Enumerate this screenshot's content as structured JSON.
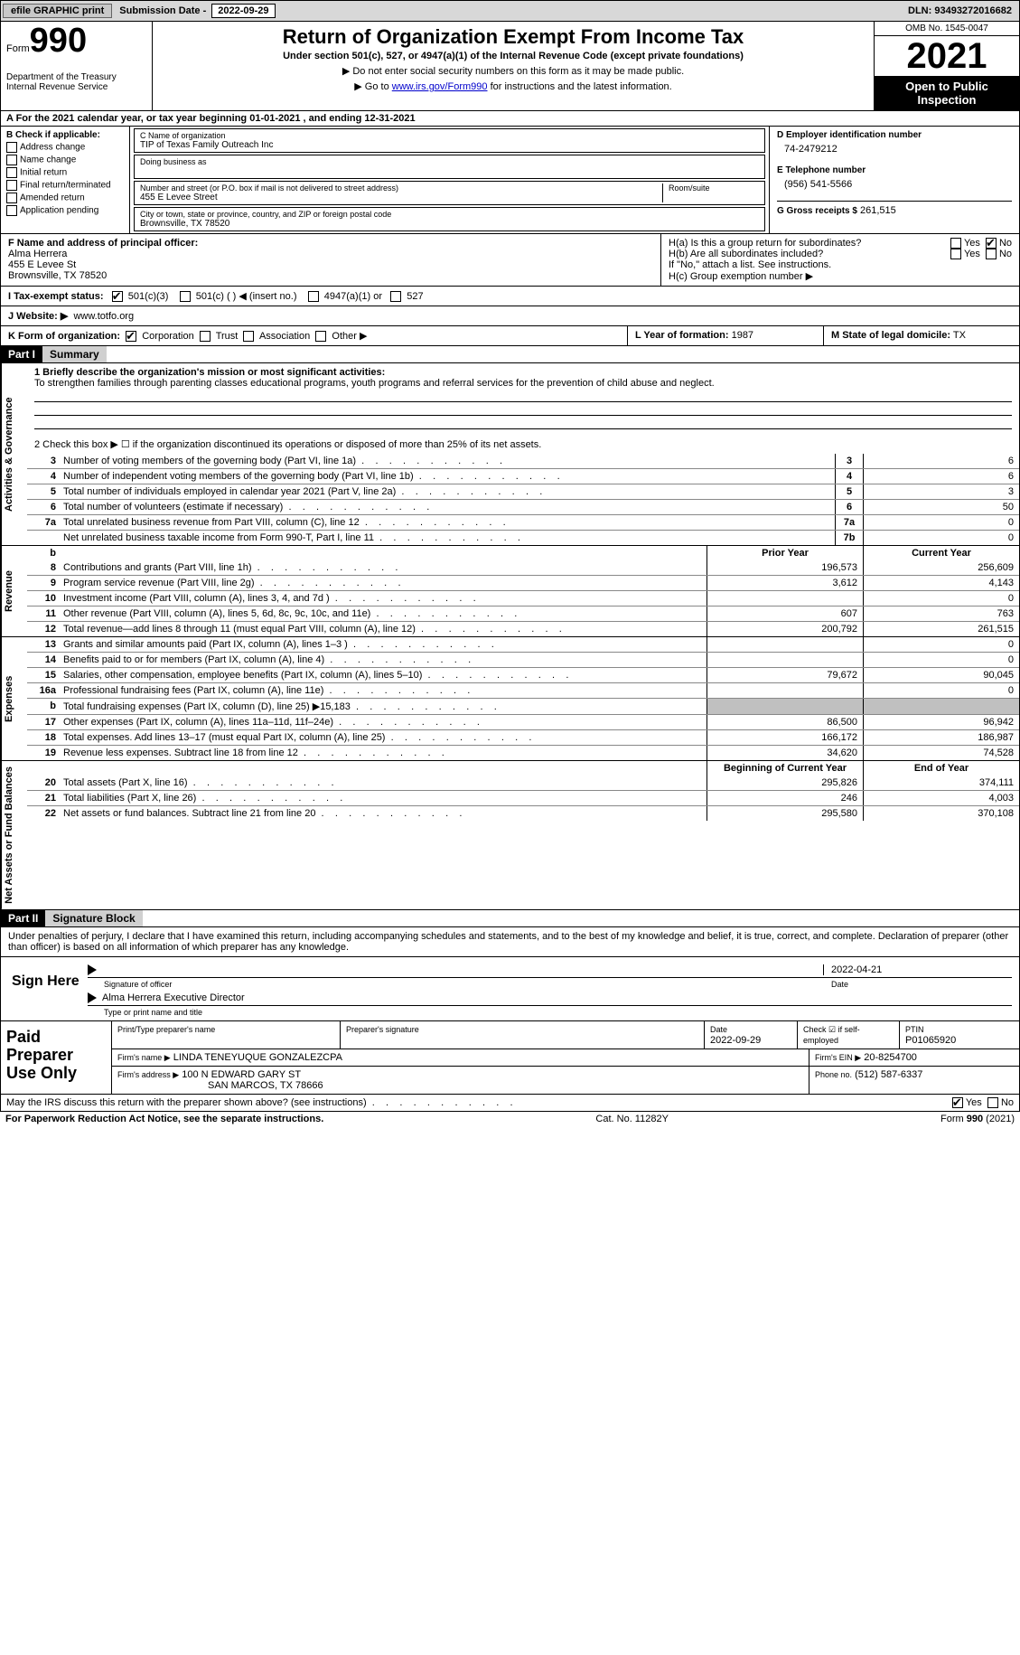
{
  "topbar": {
    "efile": "efile GRAPHIC print",
    "submission_label": "Submission Date - ",
    "submission_date": "2022-09-29",
    "dln_label": "DLN: ",
    "dln": "93493272016682"
  },
  "header": {
    "form_word": "Form",
    "form_number": "990",
    "dept1": "Department of the Treasury",
    "dept2": "Internal Revenue Service",
    "title": "Return of Organization Exempt From Income Tax",
    "subtitle": "Under section 501(c), 527, or 4947(a)(1) of the Internal Revenue Code (except private foundations)",
    "line1": "▶ Do not enter social security numbers on this form as it may be made public.",
    "line2_pre": "▶ Go to ",
    "line2_link": "www.irs.gov/Form990",
    "line2_post": " for instructions and the latest information.",
    "omb": "OMB No. 1545-0047",
    "year": "2021",
    "open_public": "Open to Public Inspection"
  },
  "rowA": {
    "text_pre": "A For the 2021 calendar year, or tax year beginning ",
    "begin": "01-01-2021",
    "mid": "  , and ending ",
    "end": "12-31-2021"
  },
  "colB": {
    "heading": "B Check if applicable:",
    "items": [
      "Address change",
      "Name change",
      "Initial return",
      "Final return/terminated",
      "Amended return",
      "Application pending"
    ]
  },
  "colC": {
    "name_label": "C Name of organization",
    "name": "TIP of Texas Family Outreach Inc",
    "dba_label": "Doing business as",
    "addr_label": "Number and street (or P.O. box if mail is not delivered to street address)",
    "room_label": "Room/suite",
    "addr": "455 E Levee Street",
    "city_label": "City or town, state or province, country, and ZIP or foreign postal code",
    "city": "Brownsville, TX  78520"
  },
  "colD": {
    "ein_label": "D Employer identification number",
    "ein": "74-2479212",
    "phone_label": "E Telephone number",
    "phone": "(956) 541-5566",
    "gross_label": "G Gross receipts $",
    "gross": "261,515"
  },
  "F": {
    "label": "F  Name and address of principal officer:",
    "name": "Alma Herrera",
    "addr1": "455 E Levee St",
    "addr2": "Brownsville, TX  78520"
  },
  "H": {
    "a": "H(a)  Is this a group return for subordinates?",
    "b": "H(b)  Are all subordinates included?",
    "b2": "If \"No,\" attach a list. See instructions.",
    "c": "H(c)  Group exemption number ▶",
    "yes": "Yes",
    "no": "No"
  },
  "I": {
    "label": "I  Tax-exempt status:",
    "opts": [
      "501(c)(3)",
      "501(c) (  ) ◀ (insert no.)",
      "4947(a)(1) or",
      "527"
    ]
  },
  "J": {
    "label": "J  Website: ▶",
    "value": "www.totfo.org"
  },
  "K": {
    "label": "K Form of organization:",
    "opts": [
      "Corporation",
      "Trust",
      "Association",
      "Other ▶"
    ]
  },
  "L": {
    "label": "L Year of formation:",
    "value": "1987"
  },
  "M": {
    "label": "M State of legal domicile:",
    "value": "TX"
  },
  "part1": {
    "bar": "Part I",
    "title": "Summary",
    "briefly_label": "1  Briefly describe the organization's mission or most significant activities:",
    "briefly": "To strengthen families through parenting classes educational programs, youth programs and referral services for the prevention of child abuse and neglect.",
    "line2": "2  Check this box ▶ ☐ if the organization discontinued its operations or disposed of more than 25% of its net assets."
  },
  "side_labels": {
    "gov": "Activities & Governance",
    "rev": "Revenue",
    "exp": "Expenses",
    "net": "Net Assets or Fund Balances"
  },
  "gov_rows": [
    {
      "n": "3",
      "t": "Number of voting members of the governing body (Part VI, line 1a)",
      "box": "3",
      "val": "6"
    },
    {
      "n": "4",
      "t": "Number of independent voting members of the governing body (Part VI, line 1b)",
      "box": "4",
      "val": "6"
    },
    {
      "n": "5",
      "t": "Total number of individuals employed in calendar year 2021 (Part V, line 2a)",
      "box": "5",
      "val": "3"
    },
    {
      "n": "6",
      "t": "Total number of volunteers (estimate if necessary)",
      "box": "6",
      "val": "50"
    },
    {
      "n": "7a",
      "t": "Total unrelated business revenue from Part VIII, column (C), line 12",
      "box": "7a",
      "val": "0"
    },
    {
      "n": "",
      "t": "Net unrelated business taxable income from Form 990-T, Part I, line 11",
      "box": "7b",
      "val": "0"
    }
  ],
  "py_cy_header": {
    "prior": "Prior Year",
    "current": "Current Year"
  },
  "rev_rows": [
    {
      "n": "8",
      "t": "Contributions and grants (Part VIII, line 1h)",
      "p": "196,573",
      "c": "256,609"
    },
    {
      "n": "9",
      "t": "Program service revenue (Part VIII, line 2g)",
      "p": "3,612",
      "c": "4,143"
    },
    {
      "n": "10",
      "t": "Investment income (Part VIII, column (A), lines 3, 4, and 7d )",
      "p": "",
      "c": "0"
    },
    {
      "n": "11",
      "t": "Other revenue (Part VIII, column (A), lines 5, 6d, 8c, 9c, 10c, and 11e)",
      "p": "607",
      "c": "763"
    },
    {
      "n": "12",
      "t": "Total revenue—add lines 8 through 11 (must equal Part VIII, column (A), line 12)",
      "p": "200,792",
      "c": "261,515"
    }
  ],
  "exp_rows": [
    {
      "n": "13",
      "t": "Grants and similar amounts paid (Part IX, column (A), lines 1–3 )",
      "p": "",
      "c": "0"
    },
    {
      "n": "14",
      "t": "Benefits paid to or for members (Part IX, column (A), line 4)",
      "p": "",
      "c": "0"
    },
    {
      "n": "15",
      "t": "Salaries, other compensation, employee benefits (Part IX, column (A), lines 5–10)",
      "p": "79,672",
      "c": "90,045"
    },
    {
      "n": "16a",
      "t": "Professional fundraising fees (Part IX, column (A), line 11e)",
      "p": "",
      "c": "0"
    },
    {
      "n": "b",
      "t": "Total fundraising expenses (Part IX, column (D), line 25) ▶15,183",
      "p": "__SHADE__",
      "c": "__SHADE__"
    },
    {
      "n": "17",
      "t": "Other expenses (Part IX, column (A), lines 11a–11d, 11f–24e)",
      "p": "86,500",
      "c": "96,942"
    },
    {
      "n": "18",
      "t": "Total expenses. Add lines 13–17 (must equal Part IX, column (A), line 25)",
      "p": "166,172",
      "c": "186,987"
    },
    {
      "n": "19",
      "t": "Revenue less expenses. Subtract line 18 from line 12",
      "p": "34,620",
      "c": "74,528"
    }
  ],
  "net_header": {
    "beg": "Beginning of Current Year",
    "end": "End of Year"
  },
  "net_rows": [
    {
      "n": "20",
      "t": "Total assets (Part X, line 16)",
      "p": "295,826",
      "c": "374,111"
    },
    {
      "n": "21",
      "t": "Total liabilities (Part X, line 26)",
      "p": "246",
      "c": "4,003"
    },
    {
      "n": "22",
      "t": "Net assets or fund balances. Subtract line 21 from line 20",
      "p": "295,580",
      "c": "370,108"
    }
  ],
  "part2": {
    "bar": "Part II",
    "title": "Signature Block",
    "decl": "Under penalties of perjury, I declare that I have examined this return, including accompanying schedules and statements, and to the best of my knowledge and belief, it is true, correct, and complete. Declaration of preparer (other than officer) is based on all information of which preparer has any knowledge."
  },
  "sign": {
    "label": "Sign Here",
    "sig_label": "Signature of officer",
    "date": "2022-04-21",
    "date_label": "Date",
    "name": "Alma Herrera  Executive Director",
    "name_label": "Type or print name and title"
  },
  "paid": {
    "label": "Paid Preparer Use Only",
    "r1": {
      "c1": "Print/Type preparer's name",
      "c2": "Preparer's signature",
      "c3": "Date",
      "c3v": "2022-09-29",
      "c4": "Check ☑ if self-employed",
      "c5": "PTIN",
      "c5v": "P01065920"
    },
    "r2": {
      "c1": "Firm's name     ▶",
      "c1v": "LINDA TENEYUQUE GONZALEZCPA",
      "c2": "Firm's EIN ▶",
      "c2v": "20-8254700"
    },
    "r3": {
      "c1": "Firm's address ▶",
      "c1v": "100 N EDWARD GARY ST",
      "c1v2": "SAN MARCOS, TX  78666",
      "c2": "Phone no.",
      "c2v": "(512) 587-6337"
    }
  },
  "discuss": {
    "q": "May the IRS discuss this return with the preparer shown above? (see instructions)",
    "yes": "Yes",
    "no": "No"
  },
  "footer": {
    "left": "For Paperwork Reduction Act Notice, see the separate instructions.",
    "mid": "Cat. No. 11282Y",
    "right": "Form 990 (2021)"
  }
}
